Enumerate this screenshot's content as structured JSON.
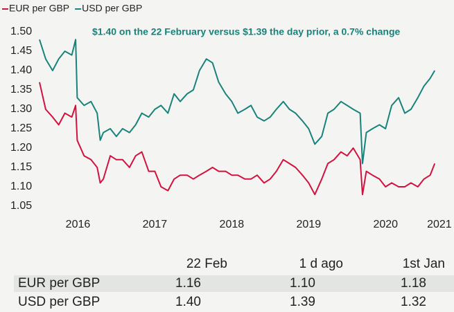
{
  "chart_data": {
    "type": "line",
    "annotation": "$1.40 on the 22 February versus $1.39  the day prior, a 0.7% change",
    "x": [
      2016.0,
      2016.08,
      2016.17,
      2016.25,
      2016.33,
      2016.42,
      2016.47,
      2016.49,
      2016.58,
      2016.67,
      2016.75,
      2016.79,
      2016.83,
      2016.92,
      2017.0,
      2017.08,
      2017.17,
      2017.25,
      2017.33,
      2017.42,
      2017.5,
      2017.58,
      2017.67,
      2017.75,
      2017.83,
      2017.92,
      2018.0,
      2018.08,
      2018.17,
      2018.25,
      2018.33,
      2018.42,
      2018.5,
      2018.58,
      2018.67,
      2018.75,
      2018.83,
      2018.92,
      2019.0,
      2019.08,
      2019.17,
      2019.25,
      2019.33,
      2019.42,
      2019.5,
      2019.58,
      2019.67,
      2019.75,
      2019.83,
      2019.92,
      2020.0,
      2020.08,
      2020.17,
      2020.2,
      2020.25,
      2020.33,
      2020.42,
      2020.5,
      2020.58,
      2020.67,
      2020.75,
      2020.83,
      2020.92,
      2021.0,
      2021.08,
      2021.14
    ],
    "series": [
      {
        "name": "EUR per GBP",
        "color": "#d1123f",
        "values": [
          1.37,
          1.3,
          1.28,
          1.26,
          1.29,
          1.28,
          1.31,
          1.22,
          1.18,
          1.17,
          1.15,
          1.11,
          1.12,
          1.18,
          1.17,
          1.17,
          1.15,
          1.18,
          1.19,
          1.14,
          1.14,
          1.1,
          1.09,
          1.12,
          1.13,
          1.13,
          1.12,
          1.13,
          1.14,
          1.15,
          1.14,
          1.14,
          1.13,
          1.13,
          1.12,
          1.12,
          1.13,
          1.11,
          1.12,
          1.14,
          1.17,
          1.16,
          1.15,
          1.13,
          1.11,
          1.08,
          1.12,
          1.16,
          1.17,
          1.19,
          1.18,
          1.2,
          1.17,
          1.08,
          1.14,
          1.13,
          1.12,
          1.1,
          1.11,
          1.1,
          1.1,
          1.11,
          1.1,
          1.12,
          1.13,
          1.16
        ]
      },
      {
        "name": "USD per GBP",
        "color": "#17837b",
        "values": [
          1.48,
          1.43,
          1.4,
          1.43,
          1.45,
          1.44,
          1.48,
          1.33,
          1.31,
          1.32,
          1.29,
          1.22,
          1.24,
          1.25,
          1.23,
          1.25,
          1.24,
          1.26,
          1.29,
          1.28,
          1.3,
          1.31,
          1.29,
          1.34,
          1.32,
          1.34,
          1.35,
          1.4,
          1.43,
          1.42,
          1.37,
          1.34,
          1.32,
          1.29,
          1.3,
          1.31,
          1.28,
          1.27,
          1.28,
          1.3,
          1.32,
          1.3,
          1.29,
          1.27,
          1.25,
          1.21,
          1.23,
          1.29,
          1.3,
          1.32,
          1.31,
          1.3,
          1.29,
          1.16,
          1.24,
          1.25,
          1.26,
          1.25,
          1.31,
          1.33,
          1.29,
          1.3,
          1.33,
          1.36,
          1.38,
          1.4
        ]
      }
    ],
    "xlim": [
      2016.0,
      2021.3
    ],
    "xticks": [
      {
        "value": 2016.5,
        "label": "2016"
      },
      {
        "value": 2017.5,
        "label": "2017"
      },
      {
        "value": 2018.5,
        "label": "2018"
      },
      {
        "value": 2019.5,
        "label": "2019"
      },
      {
        "value": 2020.5,
        "label": "2020"
      },
      {
        "value": 2021.2,
        "label": "2021"
      }
    ],
    "ylim": [
      1.03,
      1.51
    ],
    "yticks": [
      {
        "value": 1.5,
        "label": "1.50"
      },
      1.45,
      {
        "value": 1.4,
        "label": "1.40"
      },
      1.35,
      {
        "value": 1.3,
        "label": "1.30"
      },
      1.25,
      {
        "value": 1.2,
        "label": "1.20"
      },
      1.15,
      {
        "value": 1.1,
        "label": "1.10"
      },
      1.05
    ],
    "grid": false,
    "legend": "top"
  },
  "table": {
    "columns": [
      "22 Feb",
      "1 d ago",
      "1st Jan"
    ],
    "rows": [
      {
        "label": "EUR per GBP",
        "values": [
          "1.16",
          "1.10",
          "1.18"
        ]
      },
      {
        "label": "USD per GBP",
        "values": [
          "1.40",
          "1.39",
          "1.32"
        ]
      }
    ]
  }
}
